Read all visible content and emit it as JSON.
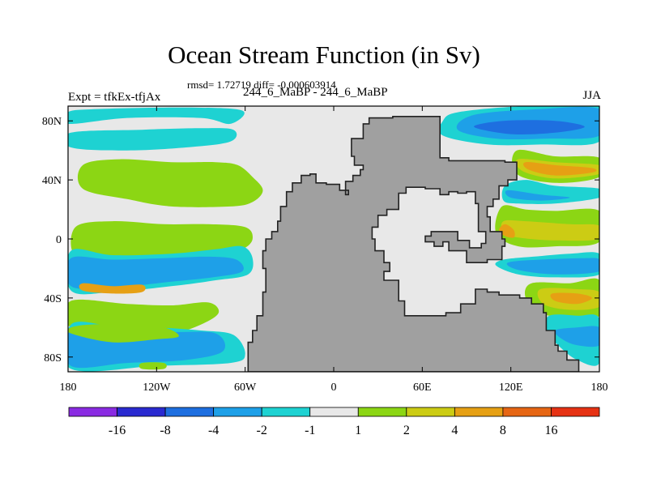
{
  "header": {
    "title": "Ocean Stream Function (in Sv)",
    "stats": "rmsd= 1.72719 diff= -0.000603914",
    "left_label": "Expt = tfkEx-tfjAx",
    "center_label": "244_6_MaBP - 244_6_MaBP",
    "right_label": "JJA"
  },
  "chart_data": {
    "type": "heatmap",
    "xlim": [
      -180,
      180
    ],
    "ylim": [
      -90,
      90
    ],
    "x_ticks": [
      {
        "value": -180,
        "label": "180"
      },
      {
        "value": -120,
        "label": "120W"
      },
      {
        "value": -60,
        "label": "60W"
      },
      {
        "value": 0,
        "label": "0"
      },
      {
        "value": 60,
        "label": "60E"
      },
      {
        "value": 120,
        "label": "120E"
      },
      {
        "value": 180,
        "label": "180"
      }
    ],
    "y_ticks": [
      {
        "value": 80,
        "label": "80N"
      },
      {
        "value": 40,
        "label": "40N"
      },
      {
        "value": 0,
        "label": "0"
      },
      {
        "value": -40,
        "label": "40S"
      },
      {
        "value": -80,
        "label": "80S"
      }
    ],
    "colorbar": {
      "colors": [
        "#8a2be2",
        "#2a2ad0",
        "#1e6fe0",
        "#1ea0e8",
        "#1ed2d2",
        "#e8e8e8",
        "#8cd614",
        "#cccc14",
        "#e6a014",
        "#e66614",
        "#e63214"
      ],
      "labels": [
        "-16",
        "-8",
        "-4",
        "-2",
        "-1",
        "1",
        "2",
        "4",
        "8",
        "16"
      ]
    },
    "land_color": "#a0a0a0",
    "background_color": "#e8e8e8",
    "land": [
      [
        [
          -58,
          -90
        ],
        [
          -58,
          -70
        ],
        [
          -55,
          -62
        ],
        [
          -52,
          -52
        ],
        [
          -48,
          -36
        ],
        [
          -46,
          -20
        ],
        [
          -48,
          -8
        ],
        [
          -46,
          0
        ],
        [
          -42,
          5
        ],
        [
          -38,
          12
        ],
        [
          -36,
          22
        ],
        [
          -32,
          32
        ],
        [
          -28,
          38
        ],
        [
          -22,
          43
        ],
        [
          -16,
          44
        ],
        [
          -12,
          38
        ],
        [
          -5,
          37
        ],
        [
          0,
          37
        ],
        [
          4,
          33
        ],
        [
          10,
          30
        ],
        [
          8,
          39
        ],
        [
          13,
          43
        ],
        [
          18,
          47
        ],
        [
          20,
          50
        ],
        [
          14,
          56
        ],
        [
          12,
          68
        ],
        [
          20,
          78
        ],
        [
          24,
          82
        ],
        [
          40,
          83
        ],
        [
          62,
          83
        ],
        [
          72,
          79
        ],
        [
          72,
          55
        ],
        [
          78,
          53
        ],
        [
          100,
          53
        ],
        [
          116,
          52
        ],
        [
          124,
          46
        ],
        [
          124,
          40
        ],
        [
          118,
          36
        ],
        [
          112,
          27
        ],
        [
          108,
          22
        ],
        [
          104,
          15
        ],
        [
          106,
          5
        ],
        [
          114,
          0
        ],
        [
          116,
          -5
        ],
        [
          114,
          -14
        ],
        [
          104,
          -16
        ],
        [
          90,
          -8
        ],
        [
          78,
          -2
        ],
        [
          74,
          -5
        ],
        [
          68,
          -2
        ],
        [
          62,
          2
        ],
        [
          66,
          5
        ],
        [
          80,
          5
        ],
        [
          84,
          -1
        ],
        [
          92,
          -6
        ],
        [
          100,
          -3
        ],
        [
          103,
          5
        ],
        [
          98,
          14
        ],
        [
          98,
          24
        ],
        [
          96,
          32
        ],
        [
          90,
          31
        ],
        [
          84,
          32
        ],
        [
          78,
          30
        ],
        [
          72,
          34
        ],
        [
          62,
          35
        ],
        [
          54,
          35
        ],
        [
          49,
          31
        ],
        [
          44,
          20
        ],
        [
          36,
          16
        ],
        [
          30,
          8
        ],
        [
          26,
          0
        ],
        [
          28,
          -8
        ],
        [
          34,
          -16
        ],
        [
          38,
          -22
        ],
        [
          34,
          -28
        ],
        [
          38,
          -28
        ],
        [
          44,
          -42
        ],
        [
          48,
          -52
        ],
        [
          62,
          -52
        ],
        [
          76,
          -50
        ],
        [
          86,
          -44
        ],
        [
          96,
          -34
        ],
        [
          104,
          -36
        ],
        [
          112,
          -38
        ],
        [
          118,
          -38
        ],
        [
          126,
          -40
        ],
        [
          134,
          -44
        ],
        [
          142,
          -50
        ],
        [
          144,
          -62
        ],
        [
          150,
          -72
        ],
        [
          152,
          -76
        ],
        [
          158,
          -82
        ],
        [
          166,
          -90
        ]
      ]
    ]
  },
  "contours": [
    {
      "level": "#8cd614",
      "pts": [
        [
          -170,
          34
        ],
        [
          -140,
          27
        ],
        [
          -110,
          22
        ],
        [
          -70,
          22
        ],
        [
          -55,
          25
        ],
        [
          -48,
          33
        ],
        [
          -55,
          42
        ],
        [
          -65,
          50
        ],
        [
          -80,
          52
        ],
        [
          -110,
          52
        ],
        [
          -145,
          54
        ],
        [
          -170,
          50
        ]
      ]
    },
    {
      "level": "#8cd614",
      "pts": [
        [
          -175,
          -12
        ],
        [
          -150,
          -14
        ],
        [
          -110,
          -12
        ],
        [
          -80,
          -11
        ],
        [
          -62,
          -7
        ],
        [
          -55,
          0
        ],
        [
          -60,
          8
        ],
        [
          -85,
          10
        ],
        [
          -115,
          10
        ],
        [
          -150,
          12
        ],
        [
          -175,
          8
        ]
      ]
    },
    {
      "level": "#8cd614",
      "pts": [
        [
          -178,
          -60
        ],
        [
          -140,
          -64
        ],
        [
          -110,
          -64
        ],
        [
          -90,
          -58
        ],
        [
          -78,
          -50
        ],
        [
          -85,
          -43
        ],
        [
          -110,
          -45
        ],
        [
          -140,
          -44
        ],
        [
          -178,
          -42
        ]
      ]
    },
    {
      "level": "#1ed2d2",
      "pts": [
        [
          -178,
          -35
        ],
        [
          -150,
          -36
        ],
        [
          -110,
          -32
        ],
        [
          -80,
          -28
        ],
        [
          -58,
          -24
        ],
        [
          -55,
          -13
        ],
        [
          -62,
          -5
        ],
        [
          -80,
          -7
        ],
        [
          -110,
          -10
        ],
        [
          -150,
          -11
        ],
        [
          -178,
          -8
        ]
      ]
    },
    {
      "level": "#1ea0e8",
      "pts": [
        [
          -178,
          -32
        ],
        [
          -150,
          -33
        ],
        [
          -110,
          -29
        ],
        [
          -82,
          -26
        ],
        [
          -62,
          -22
        ],
        [
          -66,
          -14
        ],
        [
          -85,
          -12
        ],
        [
          -115,
          -13
        ],
        [
          -150,
          -14
        ],
        [
          -178,
          -13
        ]
      ]
    },
    {
      "level": "#1ed2d2",
      "pts": [
        [
          -178,
          -88
        ],
        [
          -120,
          -86
        ],
        [
          -70,
          -84
        ],
        [
          -60,
          -78
        ],
        [
          -68,
          -65
        ],
        [
          -90,
          -62
        ],
        [
          -120,
          -60
        ],
        [
          -150,
          -59
        ],
        [
          -178,
          -58
        ]
      ]
    },
    {
      "level": "#1ea0e8",
      "pts": [
        [
          -178,
          -86
        ],
        [
          -140,
          -84
        ],
        [
          -100,
          -82
        ],
        [
          -75,
          -76
        ],
        [
          -80,
          -64
        ],
        [
          -110,
          -63
        ],
        [
          -145,
          -62
        ],
        [
          -178,
          -62
        ]
      ]
    },
    {
      "level": "#8cd614",
      "pts": [
        [
          -178,
          -64
        ],
        [
          -150,
          -70
        ],
        [
          -120,
          -68
        ],
        [
          -105,
          -66
        ],
        [
          -115,
          -60
        ],
        [
          -140,
          -58
        ],
        [
          -165,
          -58
        ],
        [
          -178,
          -60
        ]
      ]
    },
    {
      "level": "#1ed2d2",
      "pts": [
        [
          -178,
          62
        ],
        [
          -140,
          60
        ],
        [
          -100,
          62
        ],
        [
          -70,
          66
        ],
        [
          -68,
          74
        ],
        [
          -90,
          75
        ],
        [
          -130,
          74
        ],
        [
          -178,
          72
        ]
      ]
    },
    {
      "level": "#1ed2d2",
      "pts": [
        [
          -180,
          78
        ],
        [
          -140,
          82
        ],
        [
          -90,
          82
        ],
        [
          -70,
          78
        ],
        [
          -62,
          87
        ],
        [
          -100,
          89
        ],
        [
          -160,
          88
        ],
        [
          -180,
          86
        ]
      ]
    },
    {
      "level": "#1ed2d2",
      "pts": [
        [
          74,
          70
        ],
        [
          105,
          64
        ],
        [
          140,
          64
        ],
        [
          180,
          66
        ],
        [
          180,
          90
        ],
        [
          130,
          90
        ],
        [
          85,
          86
        ],
        [
          74,
          80
        ]
      ]
    },
    {
      "level": "#1ea0e8",
      "pts": [
        [
          84,
          74
        ],
        [
          110,
          68
        ],
        [
          145,
          68
        ],
        [
          180,
          70
        ],
        [
          180,
          88
        ],
        [
          140,
          88
        ],
        [
          95,
          84
        ]
      ]
    },
    {
      "level": "#1e6fe0",
      "pts": [
        [
          95,
          76
        ],
        [
          120,
          71
        ],
        [
          150,
          72
        ],
        [
          170,
          76
        ],
        [
          150,
          80
        ],
        [
          115,
          80
        ]
      ]
    },
    {
      "level": "#8cd614",
      "pts": [
        [
          124,
          60
        ],
        [
          150,
          56
        ],
        [
          180,
          55
        ],
        [
          180,
          42
        ],
        [
          150,
          38
        ],
        [
          124,
          44
        ]
      ]
    },
    {
      "level": "#cccc14",
      "pts": [
        [
          125,
          54
        ],
        [
          150,
          52
        ],
        [
          180,
          50
        ],
        [
          180,
          44
        ],
        [
          150,
          41
        ],
        [
          128,
          46
        ]
      ]
    },
    {
      "level": "#e6a014",
      "pts": [
        [
          130,
          52
        ],
        [
          150,
          50
        ],
        [
          175,
          48
        ],
        [
          175,
          45
        ],
        [
          150,
          43
        ],
        [
          132,
          47
        ]
      ]
    },
    {
      "level": "#1ed2d2",
      "pts": [
        [
          116,
          36
        ],
        [
          130,
          40
        ],
        [
          150,
          36
        ],
        [
          180,
          34
        ],
        [
          180,
          28
        ],
        [
          150,
          24
        ],
        [
          125,
          24
        ],
        [
          115,
          26
        ]
      ]
    },
    {
      "level": "#1ea0e8",
      "pts": [
        [
          118,
          33
        ],
        [
          140,
          30
        ],
        [
          160,
          28
        ],
        [
          140,
          26
        ],
        [
          120,
          28
        ]
      ]
    },
    {
      "level": "#8cd614",
      "pts": [
        [
          114,
          22
        ],
        [
          130,
          20
        ],
        [
          150,
          19
        ],
        [
          180,
          19
        ],
        [
          180,
          -2
        ],
        [
          150,
          -5
        ],
        [
          125,
          -5
        ],
        [
          110,
          4
        ]
      ]
    },
    {
      "level": "#cccc14",
      "pts": [
        [
          115,
          12
        ],
        [
          130,
          12
        ],
        [
          160,
          10
        ],
        [
          180,
          9
        ],
        [
          180,
          0
        ],
        [
          150,
          -1
        ],
        [
          125,
          1
        ],
        [
          115,
          4
        ]
      ]
    },
    {
      "level": "#e6a014",
      "pts": [
        [
          116,
          10
        ],
        [
          122,
          6
        ],
        [
          122,
          1
        ],
        [
          116,
          2
        ],
        [
          112,
          6
        ]
      ]
    },
    {
      "level": "#1ed2d2",
      "pts": [
        [
          115,
          -14
        ],
        [
          135,
          -12
        ],
        [
          160,
          -10
        ],
        [
          180,
          -10
        ],
        [
          180,
          -24
        ],
        [
          150,
          -26
        ],
        [
          125,
          -24
        ],
        [
          110,
          -18
        ]
      ]
    },
    {
      "level": "#1ea0e8",
      "pts": [
        [
          118,
          -16
        ],
        [
          140,
          -14
        ],
        [
          170,
          -13
        ],
        [
          180,
          -14
        ],
        [
          180,
          -22
        ],
        [
          150,
          -24
        ],
        [
          125,
          -21
        ]
      ]
    },
    {
      "level": "#8cd614",
      "pts": [
        [
          134,
          -30
        ],
        [
          160,
          -30
        ],
        [
          180,
          -28
        ],
        [
          180,
          -52
        ],
        [
          160,
          -54
        ],
        [
          140,
          -50
        ],
        [
          130,
          -40
        ]
      ]
    },
    {
      "level": "#cccc14",
      "pts": [
        [
          140,
          -34
        ],
        [
          165,
          -34
        ],
        [
          180,
          -36
        ],
        [
          180,
          -46
        ],
        [
          160,
          -48
        ],
        [
          142,
          -44
        ]
      ]
    },
    {
      "level": "#e6a014",
      "pts": [
        [
          148,
          -37
        ],
        [
          165,
          -37
        ],
        [
          175,
          -40
        ],
        [
          165,
          -44
        ],
        [
          150,
          -42
        ]
      ]
    },
    {
      "level": "#1ed2d2",
      "pts": [
        [
          146,
          -52
        ],
        [
          165,
          -52
        ],
        [
          180,
          -54
        ],
        [
          180,
          -84
        ],
        [
          165,
          -82
        ],
        [
          152,
          -72
        ],
        [
          144,
          -62
        ]
      ]
    },
    {
      "level": "#1ea0e8",
      "pts": [
        [
          150,
          -62
        ],
        [
          165,
          -60
        ],
        [
          180,
          -60
        ],
        [
          180,
          -72
        ],
        [
          165,
          -72
        ],
        [
          155,
          -68
        ]
      ]
    },
    {
      "level": "#e6a014",
      "pts": [
        [
          -170,
          -30
        ],
        [
          -150,
          -32
        ],
        [
          -130,
          -31
        ],
        [
          -130,
          -36
        ],
        [
          -150,
          -37
        ],
        [
          -170,
          -35
        ]
      ]
    },
    {
      "level": "#8cd614",
      "pts": [
        [
          -130,
          -84
        ],
        [
          -115,
          -84
        ],
        [
          -115,
          -88
        ],
        [
          -130,
          -88
        ]
      ]
    }
  ]
}
